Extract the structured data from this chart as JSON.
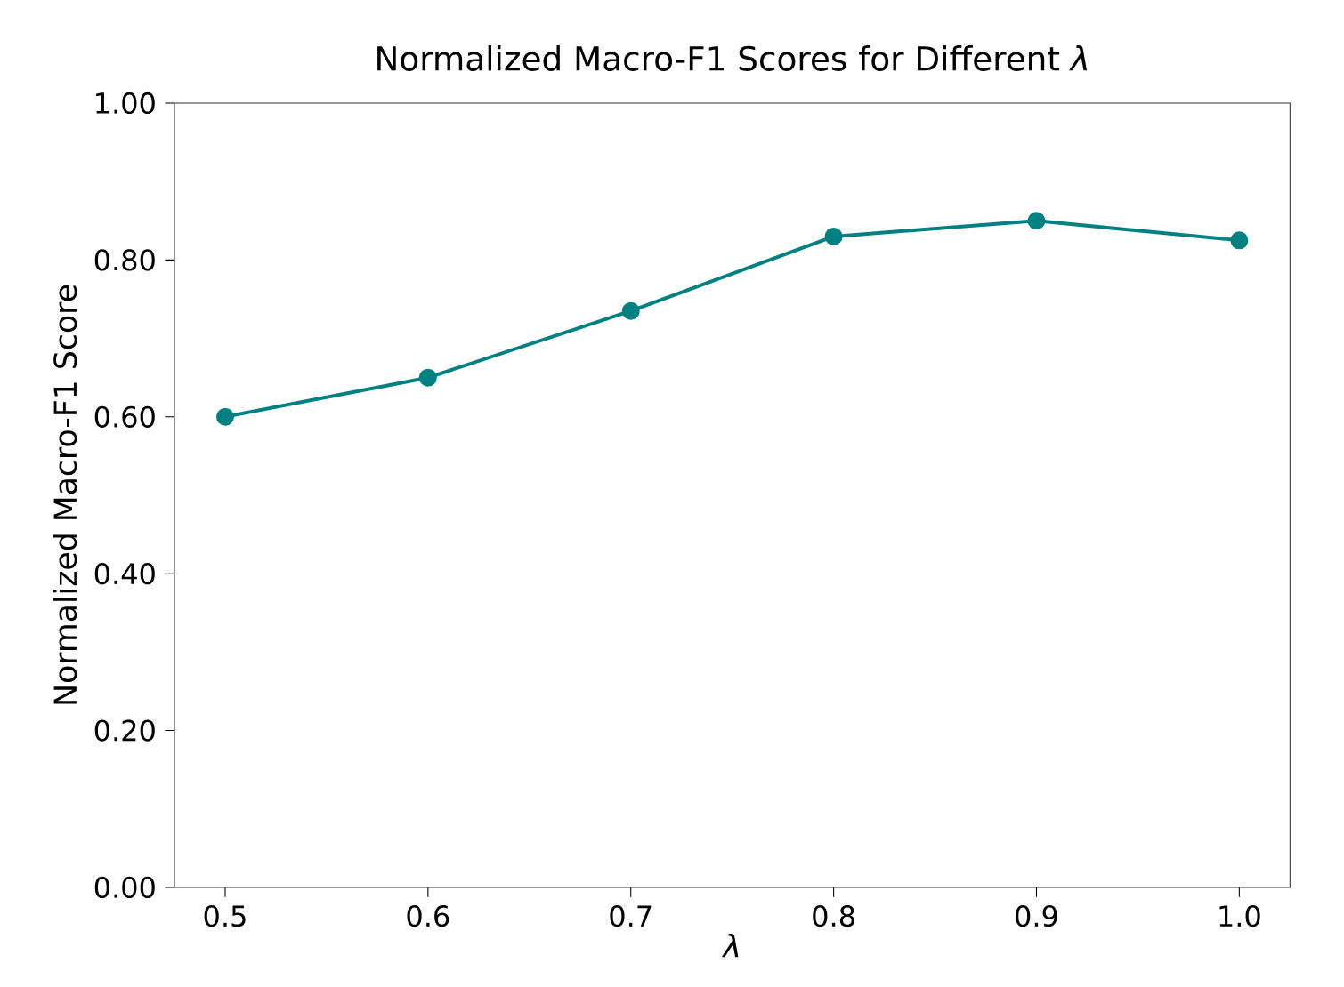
{
  "chart_data": {
    "type": "line",
    "title": "Normalized Macro-F1 Scores for Different *λ*",
    "xlabel": "λ",
    "ylabel": "Normalized Macro-F1 Score",
    "x": [
      0.5,
      0.6,
      0.7,
      0.8,
      0.9,
      1.0
    ],
    "series": [
      {
        "color": "#008080",
        "values": [
          0.6,
          0.65,
          0.735,
          0.83,
          0.85,
          0.825
        ]
      }
    ],
    "xlim": [
      0.475,
      1.025
    ],
    "ylim": [
      0,
      1
    ],
    "xticks": [
      0.5,
      0.6,
      0.7,
      0.8,
      0.9,
      {
        "value": 1.0,
        "label": "1.0"
      }
    ],
    "yticks": [
      {
        "value": 0,
        "label": "0.00"
      },
      {
        "value": 0.2,
        "label": "0.20"
      },
      {
        "value": 0.4,
        "label": "0.40"
      },
      {
        "value": 0.6,
        "label": "0.60"
      },
      {
        "value": 0.8,
        "label": "0.80"
      },
      {
        "value": 1,
        "label": "1.00"
      }
    ],
    "marker": "circle",
    "line_style": "solid"
  }
}
